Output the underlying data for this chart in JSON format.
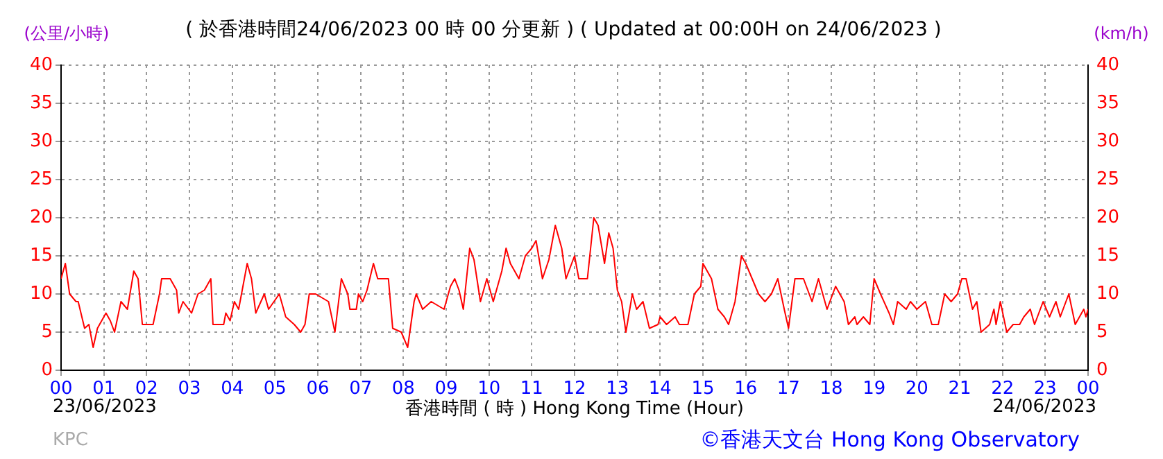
{
  "chart_data": {
    "type": "line",
    "title": "( 於香港時間24/06/2023 00 時 00 分更新 ) ( Updated at 00:00H on 24/06/2023 )",
    "xlabel": "香港時間 ( 時 ) Hong Kong Time (Hour)",
    "ylabel": "(公里/小時)",
    "y2label": "(km/h)",
    "annotations": [
      "23/06/2023",
      "24/06/2023",
      "KPC",
      "©香港天文台 Hong Kong Observatory"
    ],
    "x": [
      0,
      0.1,
      0.2,
      0.35,
      0.4,
      0.55,
      0.65,
      0.75,
      0.85,
      1.05,
      1.15,
      1.25,
      1.4,
      1.55,
      1.7,
      1.8,
      1.9,
      2,
      2.15,
      2.3,
      2.35,
      2.55,
      2.7,
      2.75,
      2.85,
      3.05,
      3.2,
      3.35,
      3.5,
      3.55,
      3.8,
      3.85,
      3.95,
      4.05,
      4.15,
      4.35,
      4.45,
      4.55,
      4.75,
      4.85,
      5.1,
      5.25,
      5.45,
      5.6,
      5.7,
      5.8,
      5.95,
      6.25,
      6.4,
      6.55,
      6.7,
      6.75,
      6.9,
      6.95,
      7.05,
      7.15,
      7.3,
      7.4,
      7.65,
      7.75,
      7.95,
      8.1,
      8.25,
      8.3,
      8.45,
      8.65,
      8.95,
      9.1,
      9.2,
      9.3,
      9.4,
      9.55,
      9.65,
      9.8,
      9.95,
      10.1,
      10.3,
      10.4,
      10.5,
      10.7,
      10.85,
      11,
      11.1,
      11.25,
      11.4,
      11.55,
      11.7,
      11.8,
      12,
      12.1,
      12.3,
      12.45,
      12.55,
      12.7,
      12.8,
      12.9,
      13,
      13.1,
      13.2,
      13.35,
      13.45,
      13.6,
      13.75,
      13.95,
      14,
      14.15,
      14.35,
      14.45,
      14.65,
      14.8,
      14.95,
      15,
      15.2,
      15.35,
      15.5,
      15.6,
      15.75,
      15.9,
      16,
      16.15,
      16.3,
      16.45,
      16.6,
      16.75,
      16.9,
      17,
      17.15,
      17.35,
      17.55,
      17.7,
      17.9,
      18.1,
      18.3,
      18.4,
      18.55,
      18.6,
      18.75,
      18.9,
      19,
      19.15,
      19.35,
      19.45,
      19.55,
      19.75,
      19.85,
      20,
      20.2,
      20.35,
      20.5,
      20.65,
      20.8,
      20.95,
      21.05,
      21.15,
      21.3,
      21.4,
      21.5,
      21.7,
      21.8,
      21.85,
      21.95,
      22.1,
      22.25,
      22.4,
      22.5,
      22.65,
      22.75,
      22.95,
      23.1,
      23.25,
      23.35,
      23.55,
      23.7,
      23.9,
      23.95,
      24
    ],
    "series": [
      {
        "color": "#ff0000",
        "values": [
          12,
          14,
          10,
          9,
          9,
          5.5,
          6,
          3,
          5.5,
          7.5,
          6.5,
          5,
          9,
          8,
          13,
          12,
          6,
          6,
          6,
          10,
          12,
          12,
          10.5,
          7.5,
          9,
          7.5,
          10,
          10.5,
          12,
          6,
          6,
          7.5,
          6.5,
          9,
          8,
          14,
          12,
          7.5,
          10,
          8,
          10,
          7,
          6,
          5,
          6,
          10,
          10,
          9,
          5,
          12,
          10,
          8,
          8,
          10,
          9,
          10.5,
          14,
          12,
          12,
          5.5,
          5,
          3,
          9,
          10,
          8,
          9,
          8,
          11,
          12,
          10.5,
          8,
          16,
          14.5,
          9,
          12,
          9,
          13,
          16,
          14,
          12,
          15,
          16,
          17,
          12,
          14.5,
          19,
          16,
          12,
          15,
          12,
          12,
          20,
          19,
          14,
          18,
          16,
          10.5,
          9,
          5,
          10,
          8,
          9,
          5.5,
          6,
          7,
          6,
          7,
          6,
          6,
          10,
          11,
          14,
          12,
          8,
          7,
          6,
          9,
          15,
          14,
          12,
          10,
          9,
          10,
          12,
          8,
          5.5,
          12,
          12,
          9,
          12,
          8,
          11,
          9,
          6,
          7,
          6,
          7,
          6,
          12,
          10,
          7.5,
          6,
          9,
          8,
          9,
          8,
          9,
          6,
          6,
          10,
          9,
          10,
          12,
          12,
          8,
          9,
          5,
          6,
          8,
          6,
          9,
          5,
          6,
          6,
          7,
          8,
          6,
          9,
          7,
          9,
          7,
          10,
          6,
          8,
          7,
          8
        ]
      }
    ],
    "xlim": [
      0,
      24
    ],
    "xticks": [
      {
        "value": 0,
        "label": "00"
      },
      {
        "value": 1,
        "label": "01"
      },
      {
        "value": 2,
        "label": "02"
      },
      {
        "value": 3,
        "label": "03"
      },
      {
        "value": 4,
        "label": "04"
      },
      {
        "value": 5,
        "label": "05"
      },
      {
        "value": 6,
        "label": "06"
      },
      {
        "value": 7,
        "label": "07"
      },
      {
        "value": 8,
        "label": "08"
      },
      {
        "value": 9,
        "label": "09"
      },
      10,
      11,
      12,
      13,
      14,
      15,
      16,
      17,
      18,
      19,
      20,
      21,
      22,
      23,
      {
        "value": 24,
        "label": "00"
      }
    ],
    "ylim": [
      0,
      40
    ],
    "yticks": [
      0,
      5,
      10,
      15,
      20,
      25,
      30,
      35,
      40
    ],
    "y2lim": [
      0,
      40
    ],
    "y2ticks": [
      0,
      5,
      10,
      15,
      20,
      25,
      30,
      35,
      40
    ],
    "grid": true
  }
}
